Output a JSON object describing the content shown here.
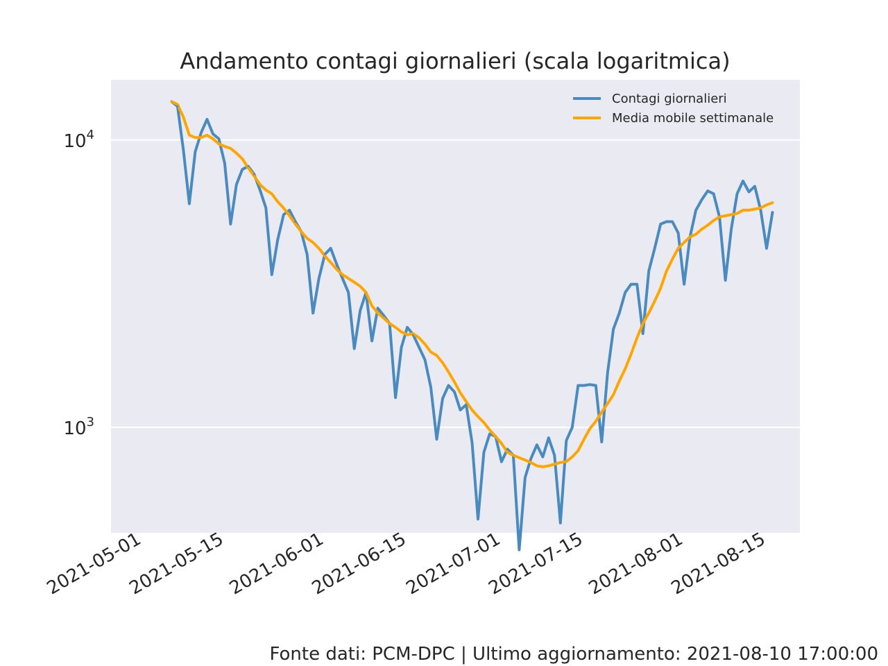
{
  "chart_data": {
    "type": "line",
    "title": "Andamento contagi giornalieri (scala logaritmica)",
    "xlabel": "",
    "ylabel": "",
    "yscale": "log",
    "ylim": [
      430,
      16200
    ],
    "xlim": [
      "2021-05-01",
      "2021-08-15"
    ],
    "grid": true,
    "legend_position": "top-right",
    "x_ticks": [
      "2021-05-01",
      "2021-05-15",
      "2021-06-01",
      "2021-06-15",
      "2021-07-01",
      "2021-07-15",
      "2021-08-01",
      "2021-08-15"
    ],
    "y_ticks": [
      {
        "value": 1000,
        "base": "10",
        "exp": "3"
      },
      {
        "value": 10000,
        "base": "10",
        "exp": "4"
      }
    ],
    "start_date": "2021-05-06",
    "series": [
      {
        "name": "Contagi giornalieri",
        "color": "#4a8bbf",
        "values": [
          13600,
          13100,
          9200,
          6000,
          9100,
          10600,
          11800,
          10500,
          10100,
          8300,
          5100,
          7000,
          7900,
          8100,
          7600,
          6700,
          5800,
          3400,
          4500,
          5500,
          5700,
          5200,
          4800,
          4000,
          2500,
          3300,
          4000,
          4200,
          3700,
          3300,
          2950,
          1880,
          2550,
          2950,
          2000,
          2600,
          2450,
          2300,
          1270,
          1900,
          2230,
          2100,
          1900,
          1720,
          1380,
          910,
          1260,
          1400,
          1330,
          1150,
          1200,
          885,
          480,
          820,
          950,
          930,
          760,
          840,
          800,
          375,
          670,
          780,
          870,
          790,
          920,
          800,
          465,
          900,
          1000,
          1400,
          1400,
          1410,
          1400,
          890,
          1550,
          2200,
          2500,
          2950,
          3150,
          3150,
          2120,
          3500,
          4200,
          5100,
          5200,
          5200,
          4750,
          3150,
          4600,
          5700,
          6200,
          6650,
          6500,
          5400,
          3250,
          4900,
          6500,
          7200,
          6600,
          6900,
          5700,
          4200,
          5600
        ]
      },
      {
        "name": "Media mobile settimanale",
        "color": "#ffa500",
        "values": [
          13600,
          13300,
          12000,
          10400,
          10200,
          10200,
          10400,
          10100,
          9700,
          9500,
          9350,
          9000,
          8600,
          8000,
          7500,
          7000,
          6700,
          6500,
          6100,
          5800,
          5450,
          5100,
          4800,
          4550,
          4400,
          4200,
          3950,
          3750,
          3550,
          3400,
          3300,
          3200,
          3100,
          2950,
          2650,
          2500,
          2400,
          2300,
          2230,
          2150,
          2100,
          2120,
          2050,
          1950,
          1830,
          1780,
          1680,
          1560,
          1440,
          1320,
          1230,
          1150,
          1090,
          1040,
          980,
          930,
          880,
          820,
          800,
          785,
          770,
          755,
          735,
          730,
          735,
          745,
          755,
          760,
          790,
          830,
          910,
          990,
          1050,
          1130,
          1210,
          1300,
          1450,
          1600,
          1800,
          2050,
          2300,
          2500,
          2750,
          3050,
          3500,
          3850,
          4200,
          4400,
          4600,
          4700,
          4900,
          5050,
          5250,
          5400,
          5450,
          5500,
          5550,
          5700,
          5700,
          5750,
          5800,
          5950,
          6050
        ]
      }
    ]
  },
  "footer": {
    "source_text": "Fonte dati: PCM-DPC | Ultimo aggiornamento: 2021-08-10 17:00:00"
  }
}
